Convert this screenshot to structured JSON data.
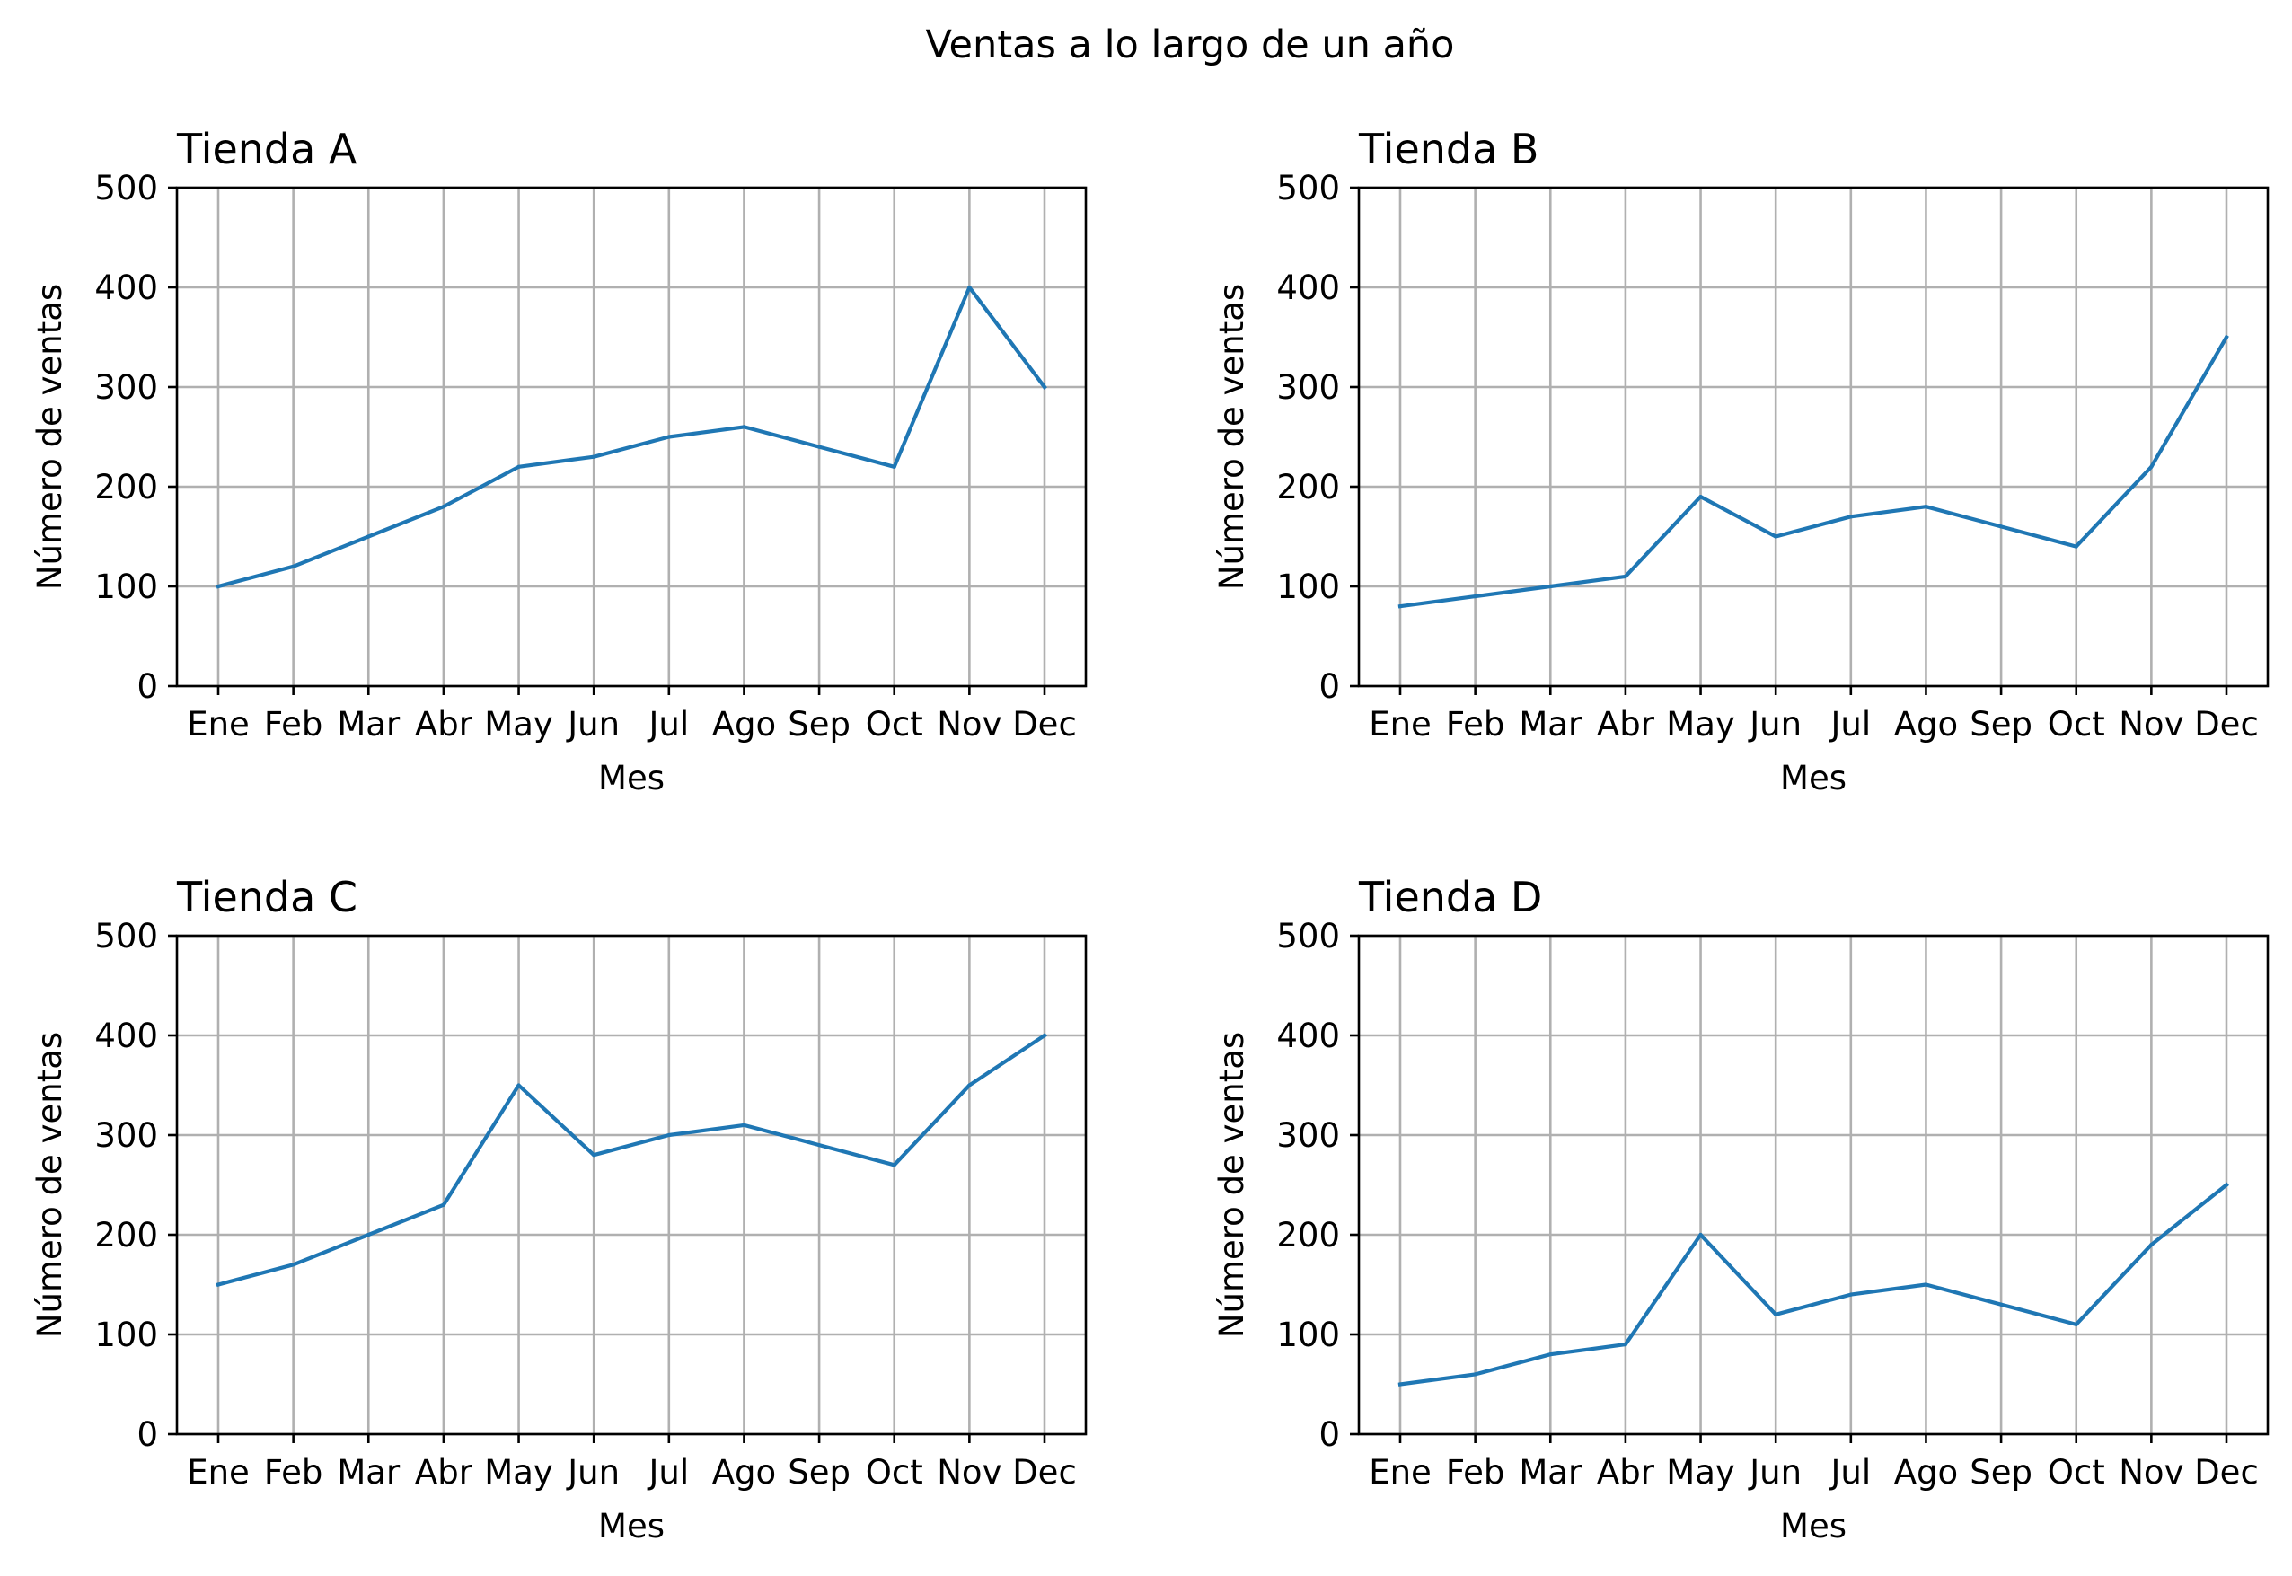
{
  "figure_title": "Ventas a lo largo de un año",
  "colors": {
    "series": "#1f77b4",
    "grid": "#b0b0b0",
    "axes": "#000000"
  },
  "chart_data": [
    {
      "type": "line",
      "title": "Tienda A",
      "xlabel": "Mes",
      "ylabel": "Número de ventas",
      "categories": [
        "Ene",
        "Feb",
        "Mar",
        "Abr",
        "May",
        "Jun",
        "Jul",
        "Ago",
        "Sep",
        "Oct",
        "Nov",
        "Dec"
      ],
      "values": [
        100,
        120,
        150,
        180,
        220,
        230,
        250,
        260,
        240,
        220,
        400,
        300
      ],
      "ylim": [
        0,
        500
      ],
      "yticks": [
        0,
        100,
        200,
        300,
        400,
        500
      ],
      "grid": true
    },
    {
      "type": "line",
      "title": "Tienda B",
      "xlabel": "Mes",
      "ylabel": "Número de ventas",
      "categories": [
        "Ene",
        "Feb",
        "Mar",
        "Abr",
        "May",
        "Jun",
        "Jul",
        "Ago",
        "Sep",
        "Oct",
        "Nov",
        "Dec"
      ],
      "values": [
        80,
        90,
        100,
        110,
        190,
        150,
        170,
        180,
        160,
        140,
        220,
        350
      ],
      "ylim": [
        0,
        500
      ],
      "yticks": [
        0,
        100,
        200,
        300,
        400,
        500
      ],
      "grid": true
    },
    {
      "type": "line",
      "title": "Tienda C",
      "xlabel": "Mes",
      "ylabel": "Número de ventas",
      "categories": [
        "Ene",
        "Feb",
        "Mar",
        "Abr",
        "May",
        "Jun",
        "Jul",
        "Ago",
        "Sep",
        "Oct",
        "Nov",
        "Dec"
      ],
      "values": [
        150,
        170,
        200,
        230,
        350,
        280,
        300,
        310,
        290,
        270,
        350,
        400
      ],
      "ylim": [
        0,
        500
      ],
      "yticks": [
        0,
        100,
        200,
        300,
        400,
        500
      ],
      "grid": true
    },
    {
      "type": "line",
      "title": "Tienda D",
      "xlabel": "Mes",
      "ylabel": "Número de ventas",
      "categories": [
        "Ene",
        "Feb",
        "Mar",
        "Abr",
        "May",
        "Jun",
        "Jul",
        "Ago",
        "Sep",
        "Oct",
        "Nov",
        "Dec"
      ],
      "values": [
        50,
        60,
        80,
        90,
        200,
        120,
        140,
        150,
        130,
        110,
        190,
        250
      ],
      "ylim": [
        0,
        500
      ],
      "yticks": [
        0,
        100,
        200,
        300,
        400,
        500
      ],
      "grid": true
    }
  ]
}
